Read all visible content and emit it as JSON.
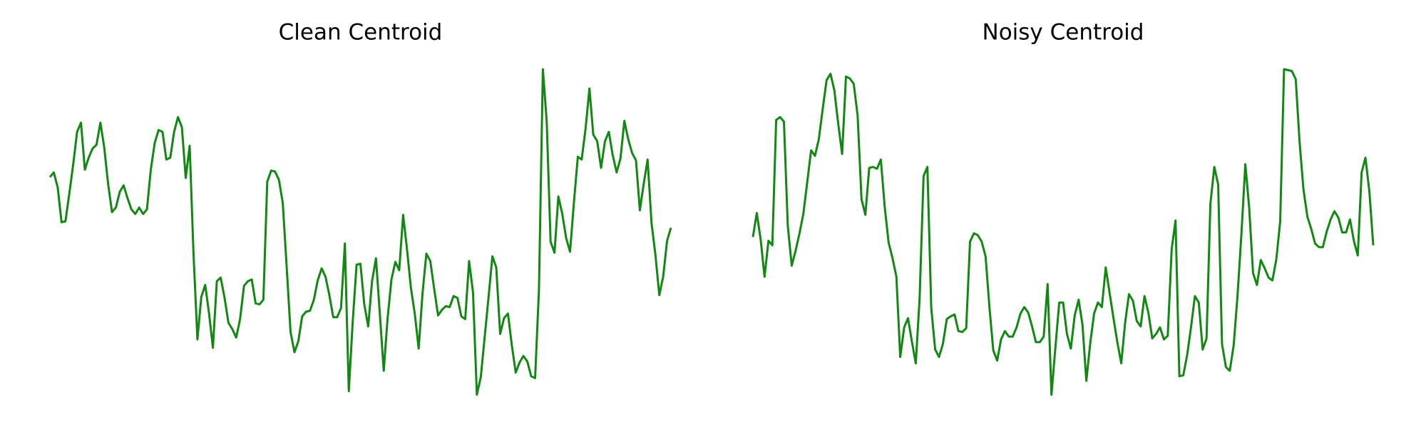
{
  "chart_data": [
    {
      "type": "line",
      "title": "Clean Centroid",
      "color": "#118811",
      "ylim": [
        0,
        463
      ],
      "values": [
        271,
        276,
        260,
        222,
        223,
        253,
        285,
        320,
        330,
        279,
        292,
        302,
        306,
        330,
        303,
        263,
        233,
        238,
        255,
        262,
        248,
        236,
        231,
        238,
        231,
        236,
        279,
        308,
        322,
        320,
        290,
        292,
        320,
        336,
        325,
        270,
        305,
        188,
        95,
        141,
        154,
        123,
        86,
        158,
        162,
        140,
        113,
        106,
        97,
        117,
        153,
        158,
        160,
        134,
        133,
        138,
        266,
        278,
        277,
        268,
        243,
        173,
        103,
        81,
        93,
        120,
        125,
        126,
        138,
        159,
        172,
        163,
        143,
        119,
        119,
        129,
        199,
        39,
        113,
        176,
        177,
        133,
        109,
        158,
        183,
        123,
        61,
        118,
        160,
        179,
        170,
        230,
        193,
        151,
        123,
        85,
        145,
        188,
        180,
        150,
        121,
        127,
        131,
        130,
        142,
        140,
        120,
        117,
        180,
        146,
        35,
        54,
        97,
        140,
        185,
        173,
        101,
        118,
        123,
        89,
        59,
        70,
        77,
        71,
        55,
        53,
        149,
        388,
        331,
        201,
        189,
        250,
        231,
        205,
        190,
        243,
        293,
        290,
        323,
        367,
        317,
        310,
        281,
        310,
        320,
        295,
        276,
        291,
        332,
        312,
        297,
        289,
        235,
        264,
        290,
        221,
        187,
        143,
        163,
        202,
        216
      ]
    },
    {
      "type": "line",
      "title": "Noisy Centroid",
      "color": "#118811",
      "ylim": [
        0,
        463
      ],
      "values": [
        206,
        232,
        203,
        163,
        202,
        197,
        333,
        336,
        331,
        218,
        175,
        191,
        210,
        231,
        265,
        300,
        294,
        312,
        345,
        376,
        383,
        365,
        329,
        296,
        380,
        378,
        372,
        338,
        247,
        230,
        281,
        282,
        280,
        290,
        238,
        200,
        183,
        163,
        76,
        108,
        118,
        93,
        69,
        140,
        272,
        282,
        129,
        84,
        76,
        90,
        117,
        120,
        122,
        104,
        103,
        107,
        201,
        210,
        208,
        201,
        185,
        130,
        83,
        72,
        95,
        104,
        98,
        98,
        108,
        123,
        130,
        124,
        109,
        92,
        92,
        98,
        155,
        35,
        85,
        135,
        135,
        101,
        85,
        121,
        138,
        111,
        50,
        91,
        123,
        135,
        130,
        173,
        145,
        118,
        92,
        69,
        113,
        144,
        137,
        115,
        109,
        142,
        124,
        96,
        101,
        108,
        95,
        99,
        193,
        224,
        55,
        56,
        78,
        108,
        142,
        135,
        84,
        96,
        242,
        282,
        263,
        90,
        65,
        61,
        89,
        143,
        209,
        285,
        238,
        167,
        154,
        181,
        172,
        162,
        159,
        182,
        223,
        388,
        387,
        386,
        377,
        309,
        258,
        228,
        215,
        199,
        195,
        195,
        212,
        225,
        234,
        227,
        211,
        211,
        225,
        202,
        186,
        276,
        292,
        255,
        197
      ]
    }
  ]
}
